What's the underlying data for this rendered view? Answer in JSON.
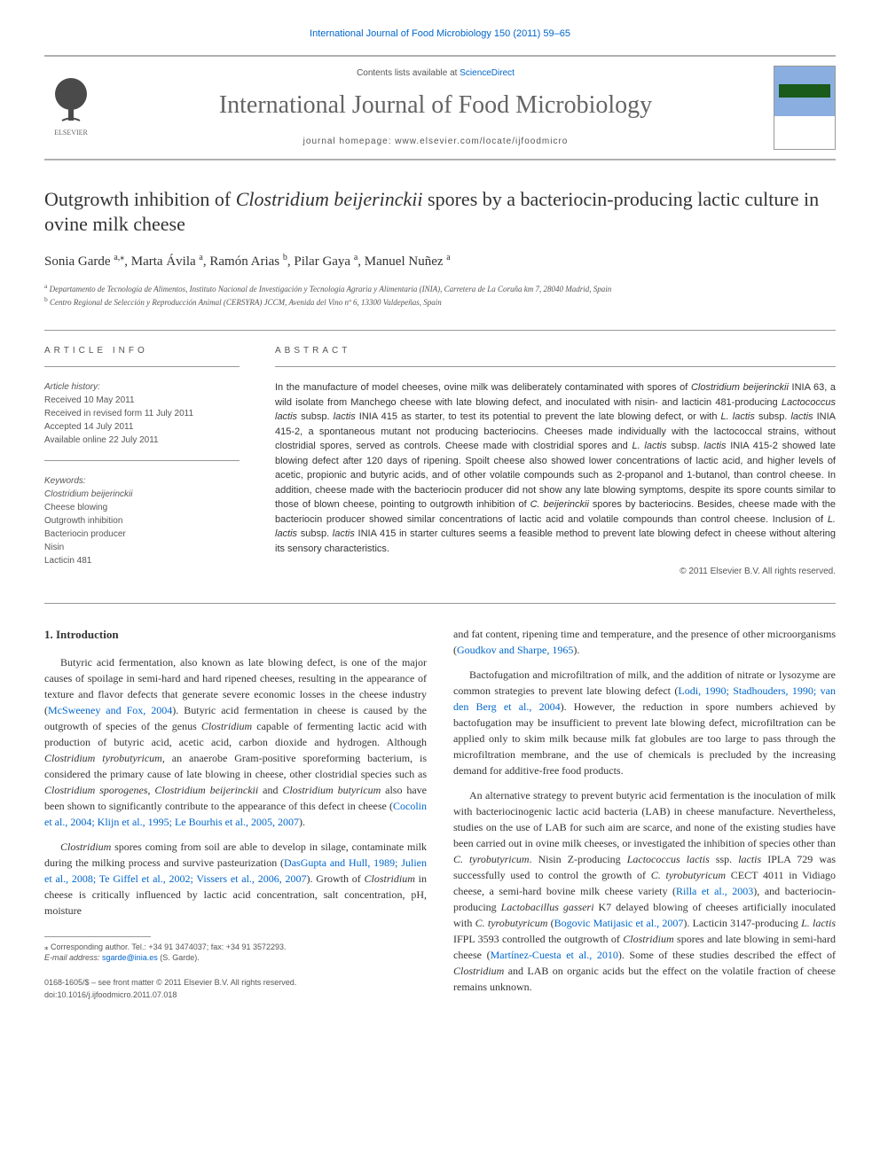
{
  "top_link": "International Journal of Food Microbiology 150 (2011) 59–65",
  "header": {
    "contents_prefix": "Contents lists available at ",
    "contents_link": "ScienceDirect",
    "journal_name": "International Journal of Food Microbiology",
    "homepage_label": "journal homepage: www.elsevier.com/locate/ijfoodmicro",
    "elsevier_label": "ELSEVIER"
  },
  "title_parts": {
    "pre": "Outgrowth inhibition of ",
    "organism": "Clostridium beijerinckii",
    "post": " spores by a bacteriocin-producing lactic culture in ovine milk cheese"
  },
  "authors": {
    "a1": "Sonia Garde ",
    "a1_sup": "a,⁎",
    "a2": ", Marta Ávila ",
    "a2_sup": "a",
    "a3": ", Ramón Arias ",
    "a3_sup": "b",
    "a4": ", Pilar Gaya ",
    "a4_sup": "a",
    "a5": ", Manuel Nuñez ",
    "a5_sup": "a"
  },
  "affiliations": {
    "a_sup": "a",
    "a_text": " Departamento de Tecnología de Alimentos, Instituto Nacional de Investigación y Tecnología Agraria y Alimentaria (INIA), Carretera de La Coruña km 7, 28040 Madrid, Spain",
    "b_sup": "b",
    "b_text": " Centro Regional de Selección y Reproducción Animal (CERSYRA) JCCM, Avenida del Vino nº 6, 13300 Valdepeñas, Spain"
  },
  "article_info": {
    "label": "ARTICLE INFO",
    "history_label": "Article history:",
    "received": "Received 10 May 2011",
    "revised": "Received in revised form 11 July 2011",
    "accepted": "Accepted 14 July 2011",
    "online": "Available online 22 July 2011",
    "keywords_label": "Keywords:",
    "kw1": "Clostridium beijerinckii",
    "kw2": "Cheese blowing",
    "kw3": "Outgrowth inhibition",
    "kw4": "Bacteriocin producer",
    "kw5": "Nisin",
    "kw6": "Lacticin 481"
  },
  "abstract": {
    "label": "ABSTRACT",
    "text_html": "In the manufacture of model cheeses, ovine milk was deliberately contaminated with spores of <em>Clostridium beijerinckii</em> INIA 63, a wild isolate from Manchego cheese with late blowing defect, and inoculated with nisin- and lacticin 481-producing <em>Lactococcus lactis</em> subsp. <em>lactis</em> INIA 415 as starter, to test its potential to prevent the late blowing defect, or with <em>L. lactis</em> subsp. <em>lactis</em> INIA 415-2, a spontaneous mutant not producing bacteriocins. Cheeses made individually with the lactococcal strains, without clostridial spores, served as controls. Cheese made with clostridial spores and <em>L. lactis</em> subsp. <em>lactis</em> INIA 415-2 showed late blowing defect after 120 days of ripening. Spoilt cheese also showed lower concentrations of lactic acid, and higher levels of acetic, propionic and butyric acids, and of other volatile compounds such as 2-propanol and 1-butanol, than control cheese. In addition, cheese made with the bacteriocin producer did not show any late blowing symptoms, despite its spore counts similar to those of blown cheese, pointing to outgrowth inhibition of <em>C. beijerinckii</em> spores by bacteriocins. Besides, cheese made with the bacteriocin producer showed similar concentrations of lactic acid and volatile compounds than control cheese. Inclusion of <em>L. lactis</em> subsp. <em>lactis</em> INIA 415 in starter cultures seems a feasible method to prevent late blowing defect in cheese without altering its sensory characteristics.",
    "copyright": "© 2011 Elsevier B.V. All rights reserved."
  },
  "intro": {
    "heading": "1. Introduction",
    "p1_html": "Butyric acid fermentation, also known as late blowing defect, is one of the major causes of spoilage in semi-hard and hard ripened cheeses, resulting in the appearance of texture and flavor defects that generate severe economic losses in the cheese industry (<span class=\"cite\">McSweeney and Fox, 2004</span>). Butyric acid fermentation in cheese is caused by the outgrowth of species of the genus <em>Clostridium</em> capable of fermenting lactic acid with production of butyric acid, acetic acid, carbon dioxide and hydrogen. Although <em>Clostridium tyrobutyricum</em>, an anaerobe Gram-positive sporeforming bacterium, is considered the primary cause of late blowing in cheese, other clostridial species such as <em>Clostridium sporogenes</em>, <em>Clostridium beijerinckii</em> and <em>Clostridium butyricum</em> also have been shown to significantly contribute to the appearance of this defect in cheese (<span class=\"cite\">Cocolin et al., 2004; Klijn et al., 1995; Le Bourhis et al., 2005, 2007</span>).",
    "p2_html": "<em>Clostridium</em> spores coming from soil are able to develop in silage, contaminate milk during the milking process and survive pasteurization (<span class=\"cite\">DasGupta and Hull, 1989; Julien et al., 2008; Te Giffel et al., 2002; Vissers et al., 2006, 2007</span>). Growth of <em>Clostridium</em> in cheese is critically influenced by lactic acid concentration, salt concentration, pH, moisture",
    "p3_html": "and fat content, ripening time and temperature, and the presence of other microorganisms (<span class=\"cite\">Goudkov and Sharpe, 1965</span>).",
    "p4_html": "Bactofugation and microfiltration of milk, and the addition of nitrate or lysozyme are common strategies to prevent late blowing defect (<span class=\"cite\">Lodi, 1990; Stadhouders, 1990; van den Berg et al., 2004</span>). However, the reduction in spore numbers achieved by bactofugation may be insufficient to prevent late blowing defect, microfiltration can be applied only to skim milk because milk fat globules are too large to pass through the microfiltration membrane, and the use of chemicals is precluded by the increasing demand for additive-free food products.",
    "p5_html": "An alternative strategy to prevent butyric acid fermentation is the inoculation of milk with bacteriocinogenic lactic acid bacteria (LAB) in cheese manufacture. Nevertheless, studies on the use of LAB for such aim are scarce, and none of the existing studies have been carried out in ovine milk cheeses, or investigated the inhibition of species other than <em>C. tyrobutyricum</em>. Nisin Z-producing <em>Lactococcus lactis</em> ssp. <em>lactis</em> IPLA 729 was successfully used to control the growth of <em>C. tyrobutyricum</em> CECT 4011 in Vidiago cheese, a semi-hard bovine milk cheese variety (<span class=\"cite\">Rilla et al., 2003</span>), and bacteriocin-producing <em>Lactobacillus gasseri</em> K7 delayed blowing of cheeses artificially inoculated with <em>C. tyrobutyricum</em> (<span class=\"cite\">Bogovic Matijasic et al., 2007</span>). Lacticin 3147-producing <em>L. lactis</em> IFPL 3593 controlled the outgrowth of <em>Clostridium</em> spores and late blowing in semi-hard cheese (<span class=\"cite\">Martínez-Cuesta et al., 2010</span>). Some of these studies described the effect of <em>Clostridium</em> and LAB on organic acids but the effect on the volatile fraction of cheese remains unknown."
  },
  "footnote": {
    "corresponding": "⁎ Corresponding author. Tel.: +34 91 3474037; fax: +34 91 3572293.",
    "email_label": "E-mail address: ",
    "email": "sgarde@inia.es",
    "email_suffix": " (S. Garde)."
  },
  "bottom": {
    "issn": "0168-1605/$ – see front matter © 2011 Elsevier B.V. All rights reserved.",
    "doi": "doi:10.1016/j.ijfoodmicro.2011.07.018"
  }
}
